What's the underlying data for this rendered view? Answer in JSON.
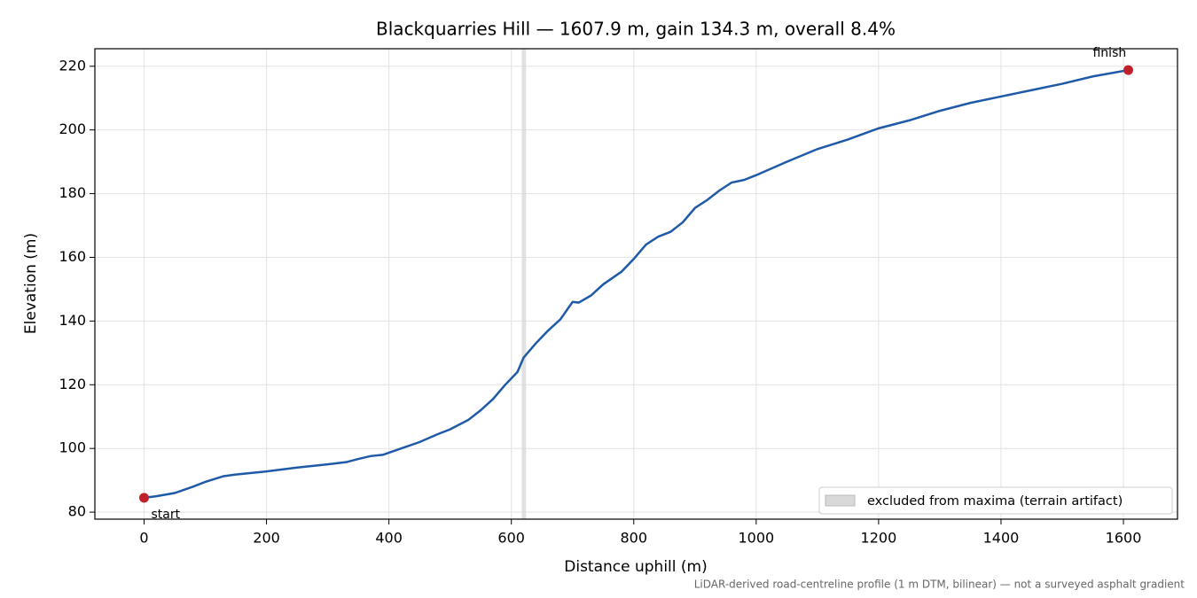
{
  "chart_data": {
    "type": "line",
    "title": "Blackquarries Hill — 1607.9 m, gain 134.3 m, overall 8.4%",
    "xlabel": "Distance uphill (m)",
    "ylabel": "Elevation (m)",
    "footnote": "LiDAR-derived road-centreline profile (1 m DTM, bilinear) — not a surveyed asphalt gradient",
    "x": [
      0,
      20,
      50,
      80,
      100,
      130,
      150,
      200,
      250,
      300,
      330,
      350,
      370,
      390,
      420,
      450,
      480,
      500,
      530,
      550,
      570,
      590,
      610,
      620,
      640,
      660,
      680,
      700,
      710,
      730,
      750,
      780,
      800,
      820,
      840,
      860,
      880,
      900,
      920,
      940,
      960,
      980,
      1000,
      1050,
      1100,
      1150,
      1200,
      1250,
      1300,
      1350,
      1400,
      1450,
      1500,
      1550,
      1607.9
    ],
    "series": [
      {
        "color": "#1f5aa8",
        "values": [
          84.5,
          85,
          86,
          88,
          89.5,
          91.3,
          91.8,
          92.8,
          94,
          95,
          95.7,
          96.7,
          97.6,
          98,
          100,
          102,
          104.5,
          106,
          109,
          112,
          115.5,
          120,
          124,
          128.5,
          133,
          137,
          140.5,
          146,
          145.8,
          148,
          151.5,
          155.5,
          159.5,
          164,
          166.5,
          168,
          171,
          175.5,
          178,
          181,
          183.5,
          184.3,
          185.8,
          190,
          194,
          197,
          200.5,
          203,
          206,
          208.5,
          210.5,
          212.5,
          214.5,
          216.8,
          218.8
        ]
      }
    ],
    "annotations": [
      {
        "text": "start",
        "x": 0,
        "y": 84.5,
        "color": "#c0202a"
      },
      {
        "text": "finish",
        "x": 1607.9,
        "y": 218.8,
        "color": "#c0202a"
      }
    ],
    "spans": [
      {
        "x0": 617,
        "x1": 624,
        "label": "excluded from maxima (terrain artifact)",
        "color": "#d9d9d9"
      }
    ],
    "xlim": [
      -80.4,
      1688.3
    ],
    "ylim": [
      77.8,
      225.5
    ],
    "xticks": [
      0,
      200,
      400,
      600,
      800,
      1000,
      1200,
      1400,
      1600
    ],
    "yticks": [
      80,
      100,
      120,
      140,
      160,
      180,
      200,
      220
    ],
    "grid": true,
    "legend": "lower right"
  }
}
